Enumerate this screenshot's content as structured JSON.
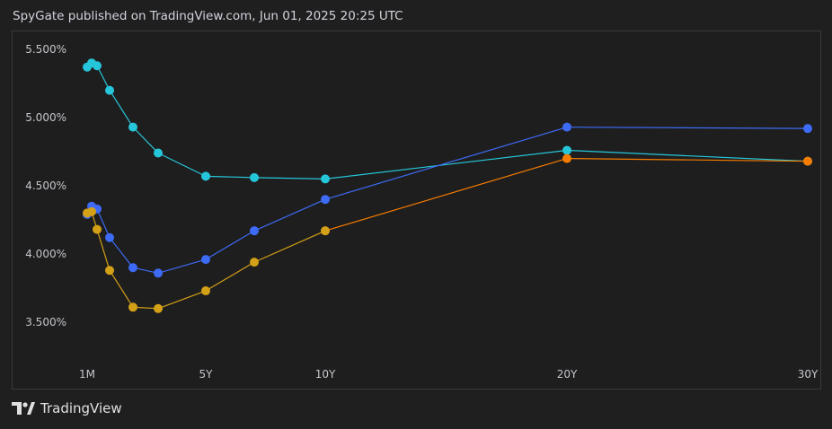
{
  "header": {
    "caption": "SpyGate published on TradingView.com, Jun 01, 2025 20:25 UTC"
  },
  "footer": {
    "brand": "TradingView",
    "logo_icon": "tradingview-logo-icon"
  },
  "chart_data": {
    "type": "line",
    "title": "",
    "xlabel": "",
    "ylabel": "",
    "x_ticks": [
      {
        "label": "1M",
        "years": 0.083
      },
      {
        "label": "5Y",
        "years": 5
      },
      {
        "label": "10Y",
        "years": 10
      },
      {
        "label": "20Y",
        "years": 20
      },
      {
        "label": "30Y",
        "years": 30
      }
    ],
    "y_ticks": [
      "3.500%",
      "4.000%",
      "4.500%",
      "5.000%",
      "5.500%"
    ],
    "y_tick_values": [
      3.5,
      4.0,
      4.5,
      5.0,
      5.5
    ],
    "ylim": [
      3.17,
      5.6
    ],
    "grid": false,
    "series": [
      {
        "color": "#26c6da",
        "points": [
          [
            0.083,
            5.37
          ],
          [
            0.25,
            5.4
          ],
          [
            0.5,
            5.38
          ],
          [
            1,
            5.2
          ],
          [
            2,
            4.93
          ],
          [
            3,
            4.74
          ],
          [
            5,
            4.57
          ],
          [
            7,
            4.56
          ],
          [
            10,
            4.55
          ],
          [
            20,
            4.76
          ],
          [
            30,
            4.68
          ]
        ]
      },
      {
        "color": "#3d6bf5",
        "points": [
          [
            0.083,
            4.29
          ],
          [
            0.25,
            4.35
          ],
          [
            0.5,
            4.33
          ],
          [
            1,
            4.12
          ],
          [
            2,
            3.9
          ],
          [
            3,
            3.86
          ],
          [
            5,
            3.96
          ],
          [
            7,
            4.17
          ],
          [
            10,
            4.4
          ],
          [
            20,
            4.93
          ],
          [
            30,
            4.92
          ]
        ]
      },
      {
        "color": "#d4a017",
        "endpoint_color": "#f57c00",
        "points": [
          [
            0.083,
            4.3
          ],
          [
            0.25,
            4.31
          ],
          [
            0.5,
            4.18
          ],
          [
            1,
            3.88
          ],
          [
            2,
            3.61
          ],
          [
            3,
            3.6
          ],
          [
            5,
            3.73
          ],
          [
            7,
            3.94
          ],
          [
            10,
            4.17
          ],
          [
            20,
            4.7
          ],
          [
            30,
            4.68
          ]
        ]
      }
    ]
  }
}
